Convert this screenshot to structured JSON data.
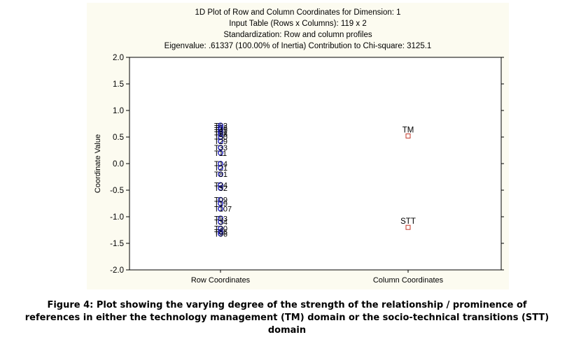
{
  "chart_data": {
    "type": "scatter",
    "title_lines": [
      "1D Plot of Row and Column Coordinates for Dimension:  1",
      "Input Table (Rows x Columns): 119 x 2",
      "Standardization: Row and column profiles",
      "Eigenvalue: .61337 (100.00% of Inertia) Contribution to Chi-square: 3125.1"
    ],
    "ylabel": "Coordinate Value",
    "ylim": [
      -2.0,
      2.0
    ],
    "yticks": [
      "2.0",
      "1.5",
      "1.0",
      "0.5",
      "0.0",
      "-0.5",
      "-1.0",
      "-1.5",
      "-2.0"
    ],
    "categories": [
      "Row Coordinates",
      "Column Coordinates"
    ],
    "row_points": [
      {
        "label": "T62",
        "y": 0.72
      },
      {
        "label": "T13",
        "y": 0.68
      },
      {
        "label": "T45",
        "y": 0.64
      },
      {
        "label": "T71",
        "y": 0.6
      },
      {
        "label": "T88",
        "y": 0.56
      },
      {
        "label": "T50",
        "y": 0.5
      },
      {
        "label": "T29",
        "y": 0.42
      },
      {
        "label": "T33",
        "y": 0.3
      },
      {
        "label": "T11",
        "y": 0.2
      },
      {
        "label": "T14",
        "y": 0.0
      },
      {
        "label": "T21",
        "y": -0.08
      },
      {
        "label": "T81",
        "y": -0.2
      },
      {
        "label": "T24",
        "y": -0.4
      },
      {
        "label": "T32",
        "y": -0.46
      },
      {
        "label": "T09",
        "y": -0.68
      },
      {
        "label": "T19",
        "y": -0.75
      },
      {
        "label": "T107",
        "y": -0.85
      },
      {
        "label": "T53",
        "y": -1.03
      },
      {
        "label": "T34",
        "y": -1.1
      },
      {
        "label": "T30",
        "y": -1.22
      },
      {
        "label": "T66",
        "y": -1.28
      },
      {
        "label": "T96",
        "y": -1.32
      }
    ],
    "column_points": [
      {
        "label": "TM",
        "y": 0.52
      },
      {
        "label": "STT",
        "y": -1.2
      }
    ],
    "colors": {
      "row_marker": "#2323c8",
      "column_marker": "#c0392b",
      "panel": "#fcfbf0"
    }
  },
  "caption": {
    "lines": [
      "Figure 4: Plot showing the varying degree of the strength of the relationship / prominence of",
      "references in either the technology management (TM) domain or the socio-technical transitions (STT)",
      "domain"
    ]
  }
}
